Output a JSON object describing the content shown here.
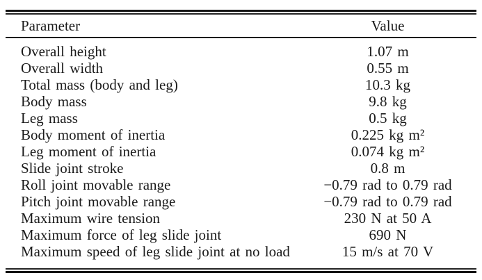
{
  "table": {
    "columns": {
      "parameter": "Parameter",
      "value": "Value"
    },
    "rows": [
      {
        "parameter": "Overall height",
        "value": "1.07 m"
      },
      {
        "parameter": "Overall width",
        "value": "0.55 m"
      },
      {
        "parameter": "Total mass (body and leg)",
        "value": "10.3 kg"
      },
      {
        "parameter": "Body mass",
        "value": "9.8 kg"
      },
      {
        "parameter": "Leg mass",
        "value": "0.5 kg"
      },
      {
        "parameter": "Body moment of inertia",
        "value": "0.225 kg m²"
      },
      {
        "parameter": "Leg moment of inertia",
        "value": "0.074 kg m²"
      },
      {
        "parameter": "Slide joint stroke",
        "value": "0.8 m"
      },
      {
        "parameter": "Roll joint movable range",
        "value": "−0.79 rad to 0.79 rad"
      },
      {
        "parameter": "Pitch joint movable range",
        "value": "−0.79 rad to 0.79 rad"
      },
      {
        "parameter": "Maximum wire tension",
        "value": "230 N at 50 A"
      },
      {
        "parameter": "Maximum force of leg slide joint",
        "value": "690 N"
      },
      {
        "parameter": "Maximum speed of leg slide joint at no load",
        "value": "15 m/s at 70 V"
      }
    ],
    "colors": {
      "text": "#1a1a1a",
      "rule": "#141414",
      "background": "#ffffff"
    }
  }
}
